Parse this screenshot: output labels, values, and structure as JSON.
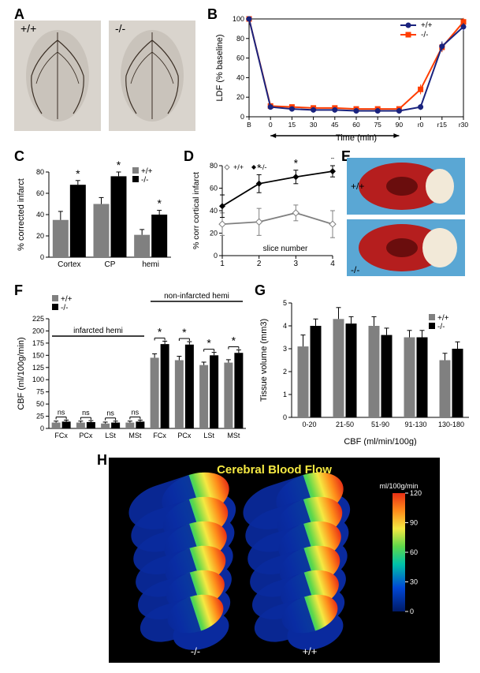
{
  "panels": {
    "A": {
      "label": "A",
      "wt_label": "+/+",
      "ko_label": "-/-"
    },
    "B": {
      "label": "B",
      "ylabel": "LDF (% baseline)",
      "xlabel": "Time (min)",
      "series": {
        "wt": {
          "name": "+/+",
          "color": "#1a237e"
        },
        "ko": {
          "name": "-/-",
          "color": "#ff3d00"
        }
      },
      "xticks": [
        "B",
        "0",
        "15",
        "30",
        "45",
        "60",
        "75",
        "90",
        "r0",
        "r15",
        "r30"
      ],
      "yticks": [
        0,
        20,
        40,
        60,
        80,
        100
      ],
      "wt_values": [
        100,
        10,
        8,
        7,
        7,
        6,
        6,
        6,
        10,
        72,
        92
      ],
      "ko_values": [
        100,
        11,
        10,
        9,
        9,
        8,
        8,
        8,
        28,
        71,
        97
      ],
      "wt_err": [
        0,
        2,
        2,
        2,
        2,
        2,
        2,
        2,
        3,
        5,
        4
      ],
      "ko_err": [
        0,
        2,
        2,
        2,
        2,
        2,
        2,
        2,
        5,
        5,
        4
      ]
    },
    "C": {
      "label": "C",
      "ylabel": "% corrected infarct",
      "categories": [
        "Cortex",
        "CP",
        "hemi"
      ],
      "wt": [
        35,
        50,
        21
      ],
      "ko": [
        68,
        76,
        40
      ],
      "wt_e": [
        8,
        6,
        5
      ],
      "ko_e": [
        4,
        4,
        4
      ],
      "sig": [
        true,
        true,
        true
      ],
      "ymax": 80,
      "ytick_step": 20,
      "wt_color": "#808080",
      "ko_color": "#000000",
      "wt_name": "+/+",
      "ko_name": "-/-"
    },
    "D": {
      "label": "D",
      "ylabel": "% corr cortical infarct",
      "xlabel": "slice number",
      "x": [
        1,
        2,
        3,
        4
      ],
      "wt": [
        28,
        30,
        38,
        28
      ],
      "ko": [
        44,
        64,
        70,
        75
      ],
      "wt_e": [
        10,
        12,
        7,
        12
      ],
      "ko_e": [
        10,
        8,
        6,
        5
      ],
      "sig": [
        false,
        true,
        true,
        true
      ],
      "ymax": 80,
      "ytick_step": 20,
      "wt_color": "#808080",
      "ko_color": "#000000",
      "wt_name": "+/+",
      "ko_name": "-/-"
    },
    "E": {
      "label": "E",
      "wt_label": "+/+",
      "ko_label": "-/-"
    },
    "F": {
      "label": "F",
      "ylabel": "CBF (ml/100g/min)",
      "categories": [
        "FCx",
        "PCx",
        "LSt",
        "MSt",
        "FCx",
        "PCx",
        "LSt",
        "MSt"
      ],
      "region1": "infarcted hemi",
      "region2": "non-infarcted hemi",
      "wt": [
        12,
        12,
        10,
        12,
        145,
        140,
        130,
        135
      ],
      "ko": [
        14,
        13,
        12,
        14,
        173,
        172,
        150,
        155
      ],
      "wt_e": [
        3,
        3,
        3,
        3,
        8,
        8,
        6,
        6
      ],
      "ko_e": [
        3,
        3,
        3,
        3,
        6,
        6,
        6,
        6
      ],
      "sig_text": [
        "ns",
        "ns",
        "ns",
        "ns",
        "*",
        "*",
        "*",
        "*"
      ],
      "ymax": 225,
      "ytick_step": 25,
      "wt_color": "#808080",
      "ko_color": "#000000",
      "wt_name": "+/+",
      "ko_name": "-/-"
    },
    "G": {
      "label": "G",
      "ylabel": "Tissue volume (mm3)",
      "xlabel": "CBF (ml/min/100g)",
      "categories": [
        "0-20",
        "21-50",
        "51-90",
        "91-130",
        "130-180"
      ],
      "wt": [
        3.1,
        4.3,
        4.0,
        3.5,
        2.5
      ],
      "ko": [
        4.0,
        4.1,
        3.6,
        3.5,
        3.0
      ],
      "wt_e": [
        0.5,
        0.5,
        0.4,
        0.3,
        0.3
      ],
      "ko_e": [
        0.3,
        0.3,
        0.3,
        0.3,
        0.3
      ],
      "ymax": 5,
      "ytick_step": 1,
      "wt_color": "#808080",
      "ko_color": "#000000",
      "wt_name": "+/+",
      "ko_name": "-/-"
    },
    "H": {
      "label": "H",
      "title": "Cerebral Blood Flow",
      "unit": "ml/100g/min",
      "scale_ticks": [
        0,
        30,
        60,
        90,
        120
      ],
      "wt_label": "+/+",
      "ko_label": "-/-"
    }
  }
}
